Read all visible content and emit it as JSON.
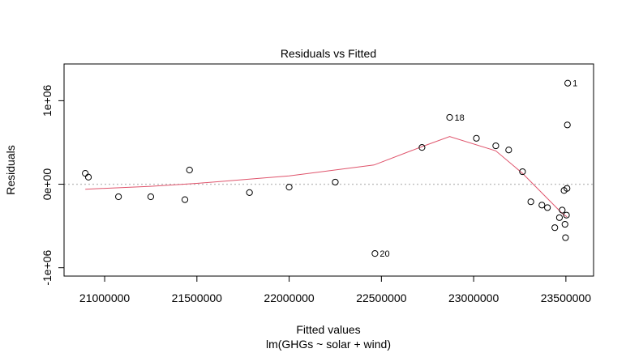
{
  "chart_data": {
    "type": "scatter",
    "title": "Residuals vs Fitted",
    "xlabel": "Fitted values",
    "subtitle": "lm(GHGs ~ solar + wind)",
    "ylabel": "Residuals",
    "xlim": [
      20780000,
      23650000
    ],
    "ylim": [
      -1100000,
      1440000
    ],
    "x_ticks": [
      21000000,
      21500000,
      22000000,
      22500000,
      23000000,
      23500000
    ],
    "x_tick_labels": [
      "21000000",
      "21500000",
      "22000000",
      "22500000",
      "23000000",
      "23500000"
    ],
    "y_ticks": [
      -1000000,
      0,
      1000000
    ],
    "y_tick_labels": [
      "-1e+06",
      "0e+00",
      "1e+06"
    ],
    "reference_line": 0,
    "grid": false,
    "colors": {
      "points": "#000000",
      "smooth": "#df536b",
      "reference": "#bebebe"
    },
    "points": [
      {
        "x": 20895000,
        "y": 130000
      },
      {
        "x": 20912000,
        "y": 85000
      },
      {
        "x": 21075000,
        "y": -150000
      },
      {
        "x": 21250000,
        "y": -150000
      },
      {
        "x": 21435000,
        "y": -185000
      },
      {
        "x": 21460000,
        "y": 170000
      },
      {
        "x": 21785000,
        "y": -100000
      },
      {
        "x": 22000000,
        "y": -35000
      },
      {
        "x": 22250000,
        "y": 25000
      },
      {
        "x": 22465000,
        "y": -830000,
        "label": "20"
      },
      {
        "x": 22720000,
        "y": 440000
      },
      {
        "x": 22870000,
        "y": 800000,
        "label": "18"
      },
      {
        "x": 23015000,
        "y": 550000
      },
      {
        "x": 23120000,
        "y": 460000
      },
      {
        "x": 23190000,
        "y": 410000
      },
      {
        "x": 23265000,
        "y": 150000
      },
      {
        "x": 23310000,
        "y": -210000
      },
      {
        "x": 23370000,
        "y": -250000
      },
      {
        "x": 23400000,
        "y": -280000
      },
      {
        "x": 23440000,
        "y": -520000
      },
      {
        "x": 23465000,
        "y": -400000
      },
      {
        "x": 23480000,
        "y": -310000
      },
      {
        "x": 23490000,
        "y": -75000
      },
      {
        "x": 23495000,
        "y": -480000
      },
      {
        "x": 23498000,
        "y": -640000
      },
      {
        "x": 23503000,
        "y": -370000
      },
      {
        "x": 23506000,
        "y": -50000
      },
      {
        "x": 23508000,
        "y": 710000
      },
      {
        "x": 23510000,
        "y": 1210000,
        "label": "1"
      }
    ],
    "smooth_line": {
      "x": [
        20895000,
        21250000,
        21500000,
        22000000,
        22460000,
        22720000,
        22870000,
        23120000,
        23265000,
        23480000,
        23506000
      ],
      "y": [
        -60000,
        -25000,
        10000,
        100000,
        230000,
        450000,
        570000,
        400000,
        130000,
        -350000,
        -390000
      ]
    }
  }
}
